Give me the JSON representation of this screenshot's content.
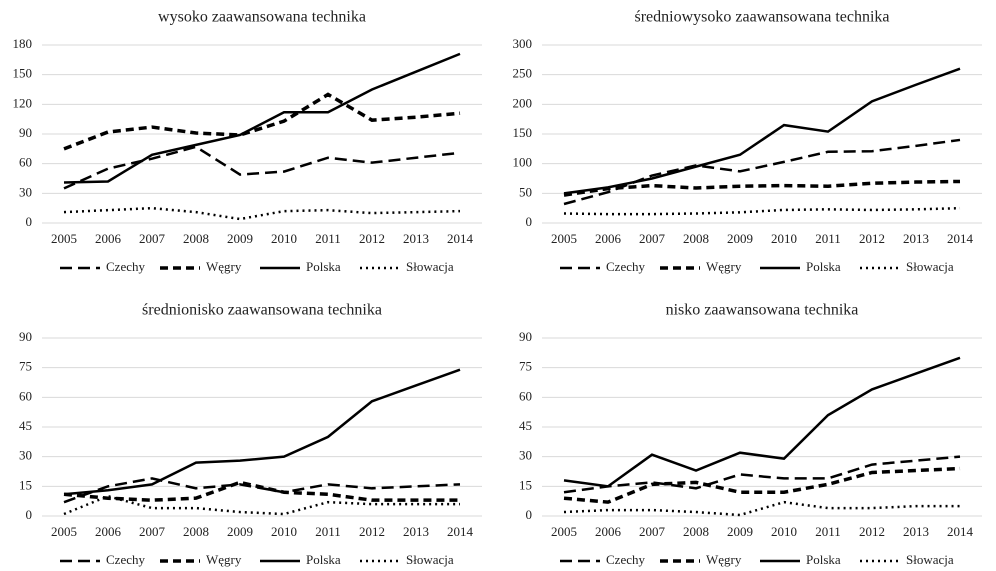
{
  "chart_data": [
    {
      "type": "line",
      "title": "wysoko zaawansowana technika",
      "categories": [
        "2005",
        "2006",
        "2007",
        "2008",
        "2009",
        "2010",
        "2011",
        "2012",
        "2013",
        "2014"
      ],
      "ylim": [
        0,
        180
      ],
      "yticks": [
        0,
        30,
        60,
        90,
        120,
        150,
        180
      ],
      "grid": true,
      "series": [
        {
          "name": "Czechy",
          "color": "#000000",
          "values": [
            35,
            55,
            65,
            77,
            49,
            52,
            66,
            61,
            66,
            71
          ]
        },
        {
          "name": "Węgry",
          "color": "#000000",
          "values": [
            75,
            92,
            97,
            91,
            89,
            103,
            130,
            104,
            107,
            111
          ]
        },
        {
          "name": "Polska",
          "color": "#000000",
          "values": [
            41,
            42,
            69,
            79,
            89,
            112,
            112,
            135,
            153,
            171
          ]
        },
        {
          "name": "Słowacja",
          "color": "#000000",
          "values": [
            11,
            13,
            15,
            11,
            4,
            12,
            13,
            10,
            11,
            12
          ]
        }
      ]
    },
    {
      "type": "line",
      "title": "średniowysoko zaawansowana technika",
      "categories": [
        "2005",
        "2006",
        "2007",
        "2008",
        "2009",
        "2010",
        "2011",
        "2012",
        "2013",
        "2014"
      ],
      "ylim": [
        0,
        300
      ],
      "yticks": [
        0,
        50,
        100,
        150,
        200,
        250,
        300
      ],
      "grid": true,
      "series": [
        {
          "name": "Czechy",
          "color": "#000000",
          "values": [
            32,
            52,
            80,
            97,
            87,
            103,
            120,
            121,
            130,
            140
          ]
        },
        {
          "name": "Węgry",
          "color": "#000000",
          "values": [
            47,
            58,
            63,
            59,
            62,
            63,
            62,
            67,
            69,
            70
          ]
        },
        {
          "name": "Polska",
          "color": "#000000",
          "values": [
            50,
            60,
            75,
            95,
            115,
            165,
            154,
            205,
            233,
            260
          ]
        },
        {
          "name": "Słowacja",
          "color": "#000000",
          "values": [
            16,
            15,
            15,
            16,
            18,
            22,
            23,
            22,
            23,
            25
          ]
        }
      ]
    },
    {
      "type": "line",
      "title": "średnionisko zaawansowana technika",
      "categories": [
        "2005",
        "2006",
        "2007",
        "2008",
        "2009",
        "2010",
        "2011",
        "2012",
        "2013",
        "2014"
      ],
      "ylim": [
        0,
        90
      ],
      "yticks": [
        0,
        15,
        30,
        45,
        60,
        75,
        90
      ],
      "grid": true,
      "series": [
        {
          "name": "Czechy",
          "color": "#000000",
          "values": [
            7,
            15,
            19,
            14,
            16,
            12,
            16,
            14,
            15,
            16
          ]
        },
        {
          "name": "Węgry",
          "color": "#000000",
          "values": [
            11,
            9,
            8,
            9,
            17,
            12,
            11,
            8,
            8,
            8
          ]
        },
        {
          "name": "Polska",
          "color": "#000000",
          "values": [
            11,
            13,
            16,
            27,
            28,
            30,
            40,
            58,
            66,
            74
          ]
        },
        {
          "name": "Słowacja",
          "color": "#000000",
          "values": [
            1,
            10,
            4,
            4,
            2,
            1,
            7,
            6,
            6,
            6
          ]
        }
      ]
    },
    {
      "type": "line",
      "title": "nisko zaawansowana technika",
      "categories": [
        "2005",
        "2006",
        "2007",
        "2008",
        "2009",
        "2010",
        "2011",
        "2012",
        "2013",
        "2014"
      ],
      "ylim": [
        0,
        90
      ],
      "yticks": [
        0,
        15,
        30,
        45,
        60,
        75,
        90
      ],
      "grid": true,
      "series": [
        {
          "name": "Czechy",
          "color": "#000000",
          "values": [
            12,
            15,
            17,
            14,
            21,
            19,
            19,
            26,
            28,
            30
          ]
        },
        {
          "name": "Węgry",
          "color": "#000000",
          "values": [
            9,
            7,
            16,
            17,
            12,
            12,
            16,
            22,
            23,
            24
          ]
        },
        {
          "name": "Polska",
          "color": "#000000",
          "values": [
            18,
            15,
            31,
            23,
            32,
            29,
            51,
            64,
            72,
            80
          ]
        },
        {
          "name": "Słowacja",
          "color": "#000000",
          "values": [
            2,
            3,
            3,
            2,
            0.5,
            7,
            4,
            4,
            5,
            5
          ]
        }
      ]
    }
  ]
}
